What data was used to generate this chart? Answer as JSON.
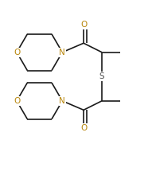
{
  "bg_color": "#ffffff",
  "line_color": "#1a1a1a",
  "atom_colors": {
    "O": "#b8860b",
    "N": "#b8860b",
    "S": "#555555"
  },
  "line_width": 1.2,
  "font_size_atoms": 7.5,
  "fig_width": 1.91,
  "fig_height": 2.25,
  "dpi": 100,
  "xlim": [
    0,
    10
  ],
  "ylim": [
    0,
    11.5
  ]
}
